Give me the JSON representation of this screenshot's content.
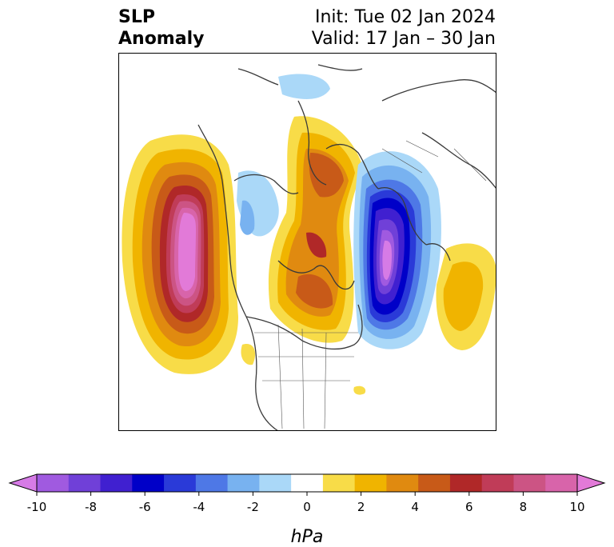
{
  "title": {
    "left_line1": "SLP",
    "left_line2": "Anomaly",
    "right_line1": "Init: Tue 02 Jan 2024",
    "right_line2": "Valid: 17 Jan – 30 Jan"
  },
  "colorbar": {
    "label": "hPa",
    "ticks": [
      "-10",
      "-8",
      "-6",
      "-4",
      "-2",
      "0",
      "2",
      "4",
      "6",
      "8",
      "10"
    ],
    "colors": [
      "#d67be6",
      "#a05ae0",
      "#7040d8",
      "#4020d0",
      "#0000c8",
      "#2a3ad8",
      "#4e78e6",
      "#78b2f0",
      "#aad8f8",
      "#ffffff",
      "#f8dc48",
      "#f0b400",
      "#e08a10",
      "#c85a18",
      "#b02828",
      "#c03c58",
      "#cc5484",
      "#d864aa",
      "#e27ad8"
    ]
  }
}
